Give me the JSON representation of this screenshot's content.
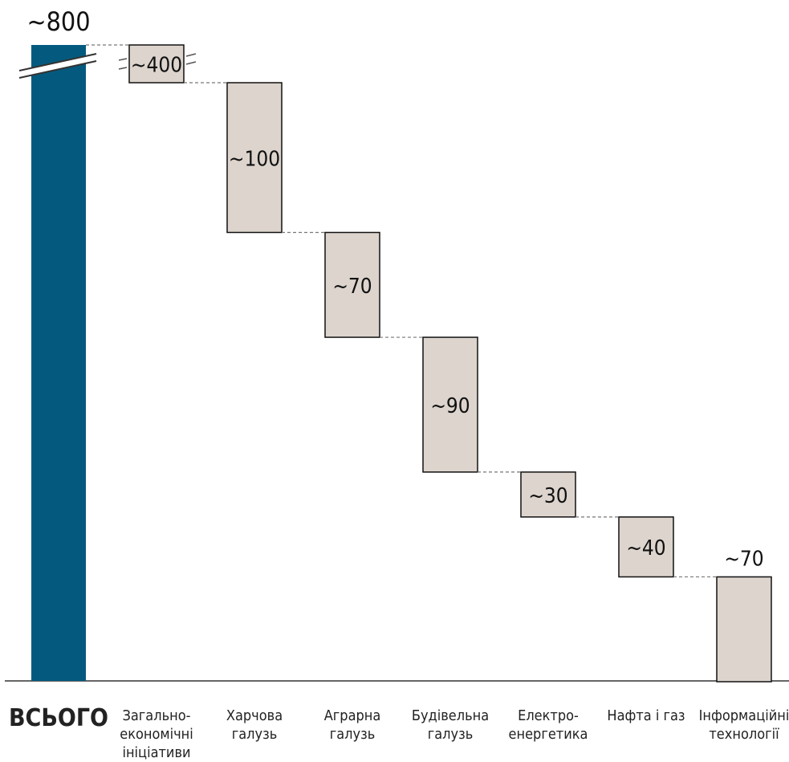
{
  "chart_data": {
    "type": "bar",
    "subtype": "waterfall",
    "title": "",
    "xlabel": "",
    "ylabel": "",
    "total": {
      "category": "ВСЬОГО",
      "value": 800,
      "label": "~800",
      "color": "#045a7e",
      "axis_break": true
    },
    "categories": [
      "Загально-\nекономічні\nініціативи",
      "Харчова\nгалузь",
      "Аграрна\nгалузь",
      "Будівельна\nгалузь",
      "Електро-\nенергетика",
      "Нафта і газ",
      "Інформаційні\nтехнології"
    ],
    "values": [
      400,
      100,
      70,
      90,
      30,
      40,
      70
    ],
    "value_labels": [
      "~400",
      "~100",
      "~70",
      "~90",
      "~30",
      "~40",
      "~70"
    ],
    "component_color": "#dcd4cd",
    "component_axis_break": [
      true,
      false,
      false,
      false,
      false,
      false,
      false
    ],
    "grid": false,
    "legend": "none"
  }
}
